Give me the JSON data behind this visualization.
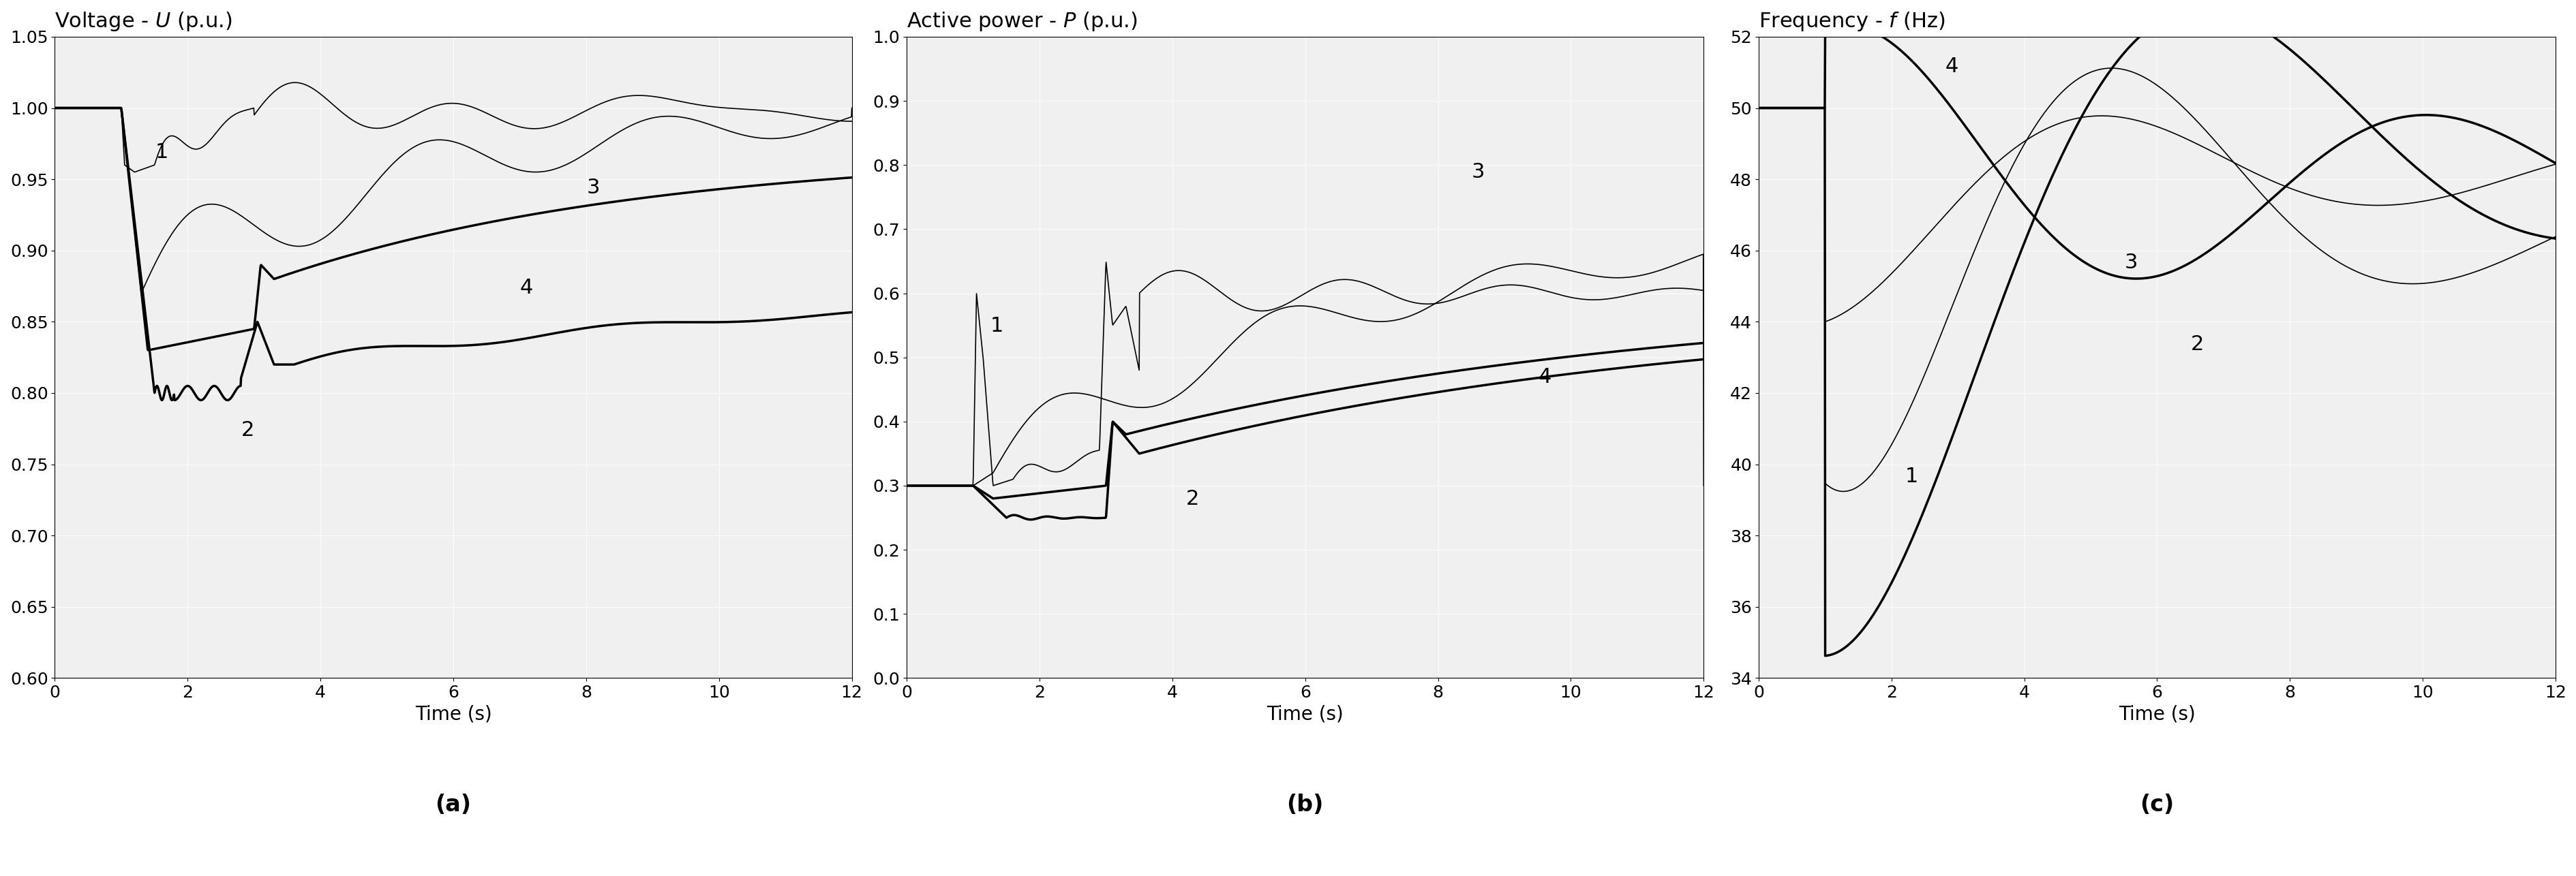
{
  "title_a": "Voltage - $U$ (p.u.)",
  "title_b": "Active power - $P$ (p.u.)",
  "title_c": "Frequency - $f$ (Hz)",
  "xlabel": "Time (s)",
  "label_a": "(a)",
  "label_b": "(b)",
  "label_c": "(c)",
  "xlim": [
    0,
    12
  ],
  "ylim_a": [
    0.6,
    1.05
  ],
  "ylim_b": [
    0.0,
    1.0
  ],
  "ylim_c": [
    34,
    52
  ],
  "yticks_a": [
    0.6,
    0.65,
    0.7,
    0.75,
    0.8,
    0.85,
    0.9,
    0.95,
    1.0,
    1.05
  ],
  "yticks_b": [
    0.0,
    0.1,
    0.2,
    0.3,
    0.4,
    0.5,
    0.6,
    0.7,
    0.8,
    0.9,
    1.0
  ],
  "yticks_c": [
    34,
    36,
    38,
    40,
    42,
    44,
    46,
    48,
    50,
    52
  ],
  "xticks": [
    0,
    2,
    4,
    6,
    8,
    10,
    12
  ],
  "bg_color": "#f0f0f0",
  "line_color_thin": "#000000",
  "line_color_thick": "#000000",
  "grid_color": "#ffffff",
  "title_fontsize": 22,
  "tick_fontsize": 18,
  "label_fontsize": 20,
  "annot_fontsize": 22
}
